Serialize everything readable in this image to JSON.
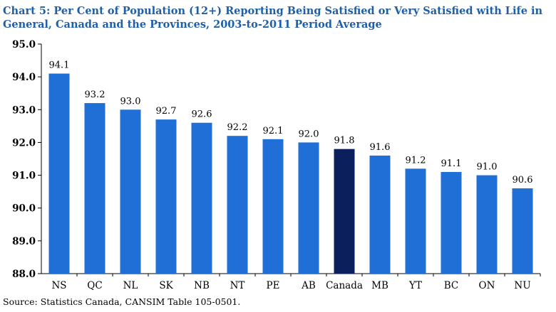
{
  "chart_data": {
    "type": "bar",
    "title": "Chart 5: Per Cent of Population (12+) Reporting Being Satisfied or Very Satisfied with Life in General, Canada and the Provinces, 2003-to-2011 Period Average",
    "categories": [
      "NS",
      "QC",
      "NL",
      "SK",
      "NB",
      "NT",
      "PE",
      "AB",
      "Canada",
      "MB",
      "YT",
      "BC",
      "ON",
      "NU"
    ],
    "values": [
      94.1,
      93.2,
      93.0,
      92.7,
      92.6,
      92.2,
      92.1,
      92.0,
      91.8,
      91.6,
      91.2,
      91.1,
      91.0,
      90.6
    ],
    "value_labels": [
      "94.1",
      "93.2",
      "93.0",
      "92.7",
      "92.6",
      "92.2",
      "92.1",
      "92.0",
      "91.8",
      "91.6",
      "91.2",
      "91.1",
      "91.0",
      "90.6"
    ],
    "ylim": [
      88.0,
      95.0
    ],
    "yticks": [
      "88.0",
      "89.0",
      "90.0",
      "91.0",
      "92.0",
      "93.0",
      "94.0",
      "95.0"
    ],
    "xlabel": "",
    "ylabel": "",
    "grid": false,
    "bar_color": "#1f6fd6",
    "highlight_category": "Canada",
    "highlight_color": "#0b1f5c",
    "source": "Source: Statistics Canada, CANSIM Table 105-0501."
  }
}
